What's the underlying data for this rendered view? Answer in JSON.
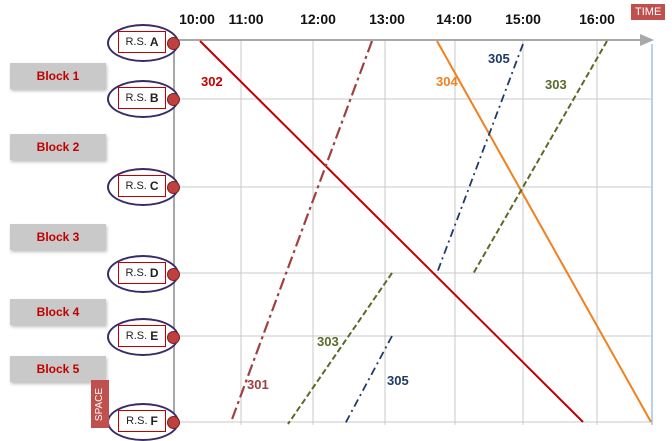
{
  "axis": {
    "time_label": "TIME",
    "space_label": "SPACE",
    "times": [
      "10:00",
      "11:00",
      "12:00",
      "13:00",
      "14:00",
      "15:00",
      "16:00"
    ]
  },
  "blocks": [
    "Block 1",
    "Block 2",
    "Block 3",
    "Block 4",
    "Block 5"
  ],
  "stations": [
    {
      "prefix": "R.S.",
      "letter": "A"
    },
    {
      "prefix": "R.S.",
      "letter": "B"
    },
    {
      "prefix": "R.S.",
      "letter": "C"
    },
    {
      "prefix": "R.S.",
      "letter": "D"
    },
    {
      "prefix": "R.S.",
      "letter": "E"
    },
    {
      "prefix": "R.S.",
      "letter": "F"
    }
  ],
  "trains": [
    {
      "id": "302",
      "color": "#c00000",
      "style": "solid"
    },
    {
      "id": "301",
      "color": "#a04040",
      "style": "dashdot"
    },
    {
      "id": "304",
      "color": "#f08020",
      "style": "solid"
    },
    {
      "id": "305",
      "color": "#1f3a6a",
      "style": "dashdot"
    },
    {
      "id": "303",
      "color": "#5a6a2a",
      "style": "dashed"
    }
  ],
  "colors": {
    "grid": "#c8c8c8",
    "axis_arrow": "#a8a8a8",
    "station_dot": "#c04040",
    "ellipse": "#3a2a6a",
    "tag": "#c0504d"
  }
}
